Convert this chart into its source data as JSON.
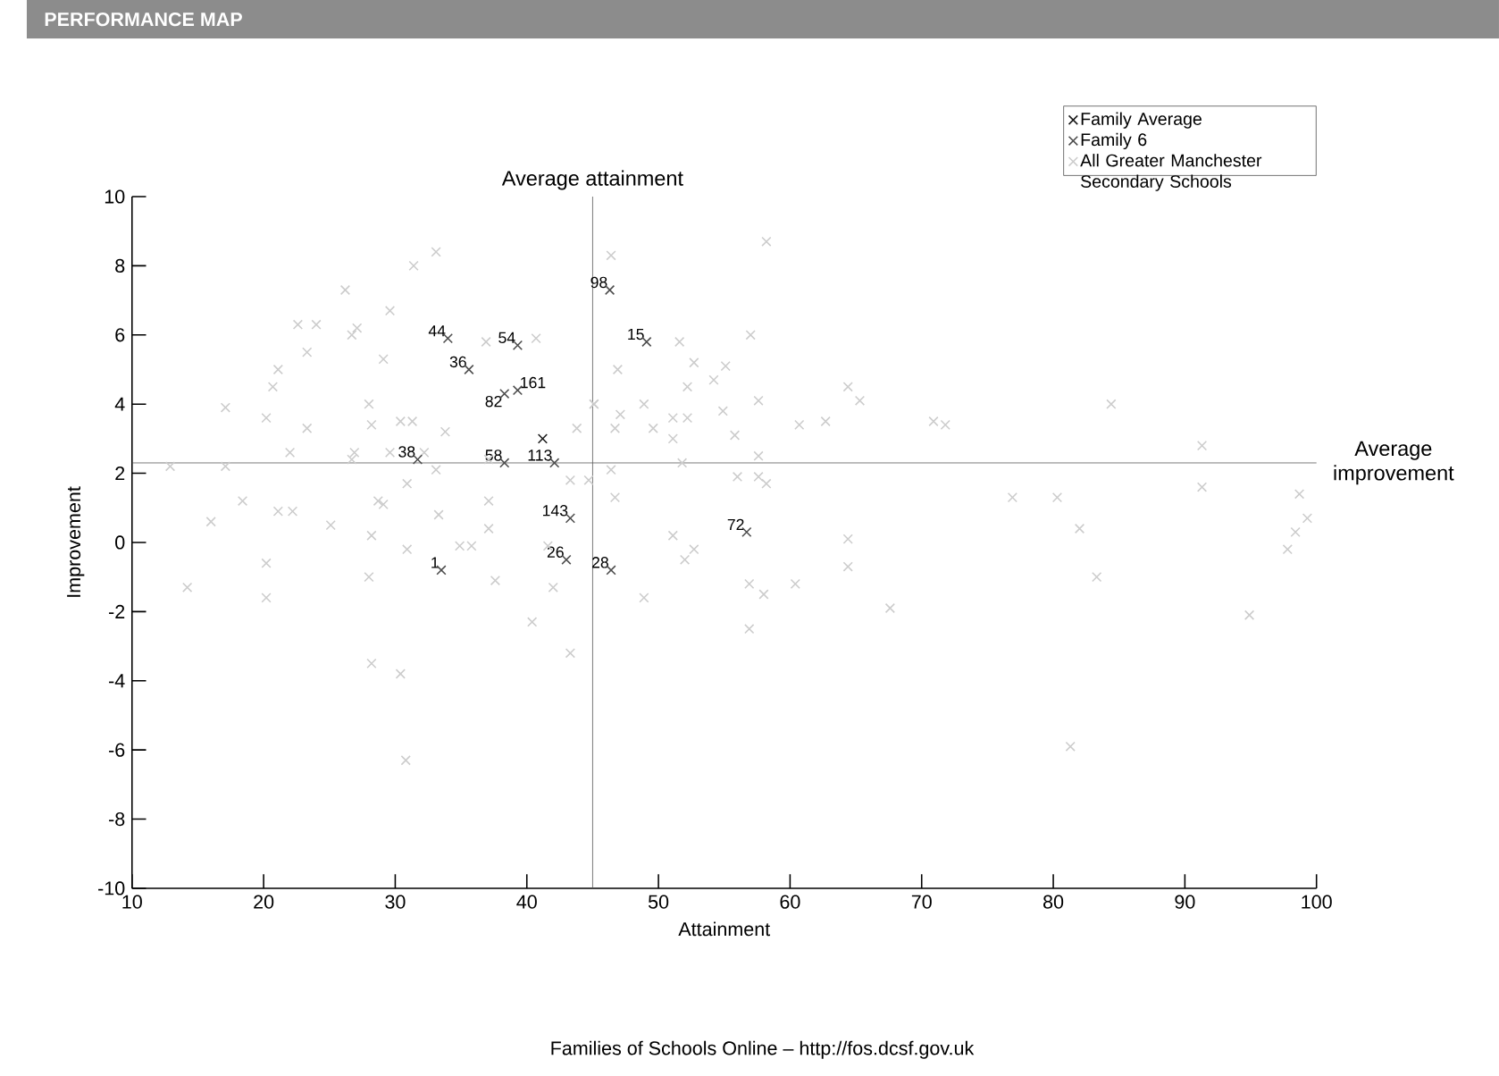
{
  "chart_data": {
    "type": "scatter",
    "title": "PERFORMANCE MAP",
    "xlabel": "Attainment",
    "ylabel": "Improvement",
    "xlim": [
      10,
      100
    ],
    "ylim": [
      -10,
      10
    ],
    "xticks": [
      10,
      20,
      30,
      40,
      50,
      60,
      70,
      80,
      90,
      100
    ],
    "yticks": [
      -10,
      -8,
      -6,
      -4,
      -2,
      0,
      2,
      4,
      6,
      8,
      10
    ],
    "grid": false,
    "legend": "top right",
    "marker": "cross",
    "series": [
      {
        "name": "Family Average",
        "color": "#1a1a1a",
        "x": [
          41.2
        ],
        "values": [
          3.0
        ]
      },
      {
        "name": "Family 6",
        "color": "#4d4d4d",
        "x": [
          34.0,
          39.3,
          35.6,
          38.3,
          39.3,
          31.7,
          38.3,
          42.1,
          43.3,
          43.0,
          33.5,
          46.3,
          49.1,
          56.7,
          46.4
        ],
        "values": [
          5.9,
          5.7,
          5.0,
          4.3,
          4.4,
          2.4,
          2.3,
          2.3,
          0.7,
          -0.5,
          -0.8,
          7.3,
          5.8,
          0.3,
          -0.8
        ]
      },
      {
        "name": "All Greater Manchester Secondary Schools",
        "color": "#cccccc",
        "x": [
          33.1,
          31.4,
          26.2,
          29.6,
          22.6,
          24.0,
          26.7,
          27.1,
          23.3,
          29.1,
          21.1,
          20.7,
          17.1,
          20.2,
          28.0,
          30.4,
          31.3,
          28.2,
          23.3,
          33.8,
          22.0,
          26.9,
          29.6,
          32.2,
          33.1,
          12.9,
          17.1,
          26.7,
          37.1,
          43.3,
          44.7,
          18.4,
          16.0,
          21.1,
          22.2,
          28.7,
          29.1,
          30.9,
          33.3,
          37.1,
          25.1,
          28.2,
          30.9,
          34.9,
          35.8,
          37.1,
          41.6,
          42.0,
          20.2,
          28.0,
          37.6,
          14.2,
          20.2,
          40.4,
          45.1,
          43.8,
          36.9,
          40.7,
          43.3,
          28.2,
          30.4,
          30.8,
          58.2,
          46.4,
          51.6,
          57.0,
          52.7,
          46.9,
          54.2,
          55.1,
          52.2,
          57.6,
          64.4,
          65.3,
          45.1,
          47.1,
          48.9,
          46.7,
          49.6,
          51.1,
          52.2,
          51.1,
          54.9,
          55.8,
          60.7,
          62.7,
          70.9,
          71.8,
          46.4,
          51.8,
          57.6,
          56.0,
          57.6,
          58.2,
          46.7,
          51.1,
          52.7,
          52.0,
          56.9,
          58.0,
          60.4,
          64.4,
          64.4,
          67.6,
          48.9,
          56.9,
          84.4,
          91.3,
          76.9,
          80.3,
          82.0,
          83.3,
          91.3,
          98.7,
          99.3,
          98.4,
          97.8,
          94.9,
          81.3
        ],
        "values": [
          8.4,
          8.0,
          7.3,
          6.7,
          6.3,
          6.3,
          6.0,
          6.2,
          5.5,
          5.3,
          5.0,
          4.5,
          3.9,
          3.6,
          4.0,
          3.5,
          3.5,
          3.4,
          3.3,
          3.2,
          2.6,
          2.6,
          2.6,
          2.6,
          2.1,
          2.2,
          2.2,
          2.4,
          2.4,
          1.8,
          1.8,
          1.2,
          0.6,
          0.9,
          0.9,
          1.2,
          1.1,
          1.7,
          0.8,
          1.2,
          0.5,
          0.2,
          -0.2,
          -0.1,
          -0.1,
          0.4,
          -0.1,
          -1.3,
          -0.6,
          -1.0,
          -1.1,
          -1.3,
          -1.6,
          -2.3,
          4.0,
          3.3,
          5.8,
          5.9,
          -3.2,
          -3.5,
          -3.8,
          -6.3,
          8.7,
          8.3,
          5.8,
          6.0,
          5.2,
          5.0,
          4.7,
          5.1,
          4.5,
          4.1,
          4.5,
          4.1,
          4.0,
          3.7,
          4.0,
          3.3,
          3.3,
          3.6,
          3.6,
          3.0,
          3.8,
          3.1,
          3.4,
          3.5,
          3.5,
          3.4,
          2.1,
          2.3,
          2.5,
          1.9,
          1.9,
          1.7,
          1.3,
          0.2,
          -0.2,
          -0.5,
          -1.2,
          -1.5,
          -1.2,
          0.1,
          -0.7,
          -1.9,
          -1.6,
          -2.5,
          4.0,
          2.8,
          1.3,
          1.3,
          0.4,
          -1.0,
          1.6,
          1.4,
          0.7,
          0.3,
          -0.2,
          -2.1,
          -5.9
        ]
      }
    ],
    "ref_lines": [
      {
        "axis": "x",
        "value": 45,
        "label": "Average attainment",
        "color": "#555555"
      },
      {
        "axis": "y",
        "value": 2.3,
        "label": "Average improvement",
        "color": "#555555"
      }
    ],
    "annotations": [
      {
        "text": "44",
        "x": 34.0,
        "y": 5.9
      },
      {
        "text": "54",
        "x": 39.3,
        "y": 5.7
      },
      {
        "text": "36",
        "x": 35.6,
        "y": 5.0
      },
      {
        "text": "82",
        "x": 38.3,
        "y": 4.3
      },
      {
        "text": "161",
        "x": 39.3,
        "y": 4.4
      },
      {
        "text": "38",
        "x": 31.7,
        "y": 2.4
      },
      {
        "text": "58",
        "x": 38.3,
        "y": 2.3
      },
      {
        "text": "113",
        "x": 42.1,
        "y": 2.3
      },
      {
        "text": "143",
        "x": 43.3,
        "y": 0.7
      },
      {
        "text": "26",
        "x": 43.0,
        "y": -0.5
      },
      {
        "text": "1",
        "x": 33.5,
        "y": -0.8
      },
      {
        "text": "98",
        "x": 46.3,
        "y": 7.3
      },
      {
        "text": "15",
        "x": 49.1,
        "y": 5.8
      },
      {
        "text": "72",
        "x": 56.7,
        "y": 0.3
      },
      {
        "text": "28",
        "x": 46.4,
        "y": -0.8
      },
      "Families of Schools Online – http://fos.dcsf.gov.uk"
    ]
  }
}
